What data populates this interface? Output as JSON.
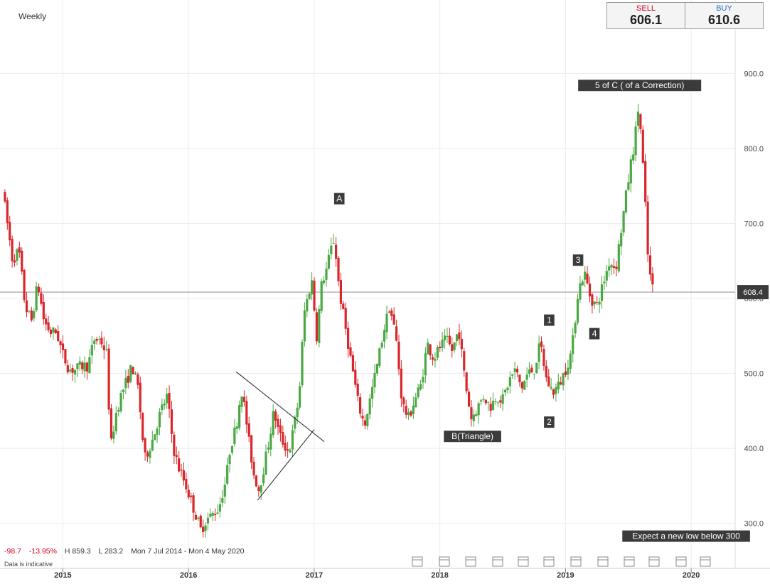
{
  "header": {
    "timeframe": "Weekly",
    "sell_label": "SELL",
    "sell_price": "606.1",
    "buy_label": "BUY",
    "buy_price": "610.6"
  },
  "footer": {
    "change": "-98.7",
    "change_pct": "-13.95%",
    "high": "H 859.3",
    "low": "L 283.2",
    "range": "Mon 7 Jul 2014 - Mon 4 May 2020",
    "note": "Data is indicative"
  },
  "colors": {
    "up": "#4aa843",
    "down": "#d9262b",
    "grid": "#ececec",
    "label_bg": "#3b3b3b",
    "current_line": "#8a8a8a"
  },
  "chart_data": {
    "type": "candlestick",
    "timeframe": "Weekly",
    "y_ticks": [
      300.0,
      400.0,
      500.0,
      600.0,
      700.0,
      800.0,
      900.0
    ],
    "y_tick_labels": [
      "300.0",
      "400.0",
      "500.0",
      "600.0",
      "700.0",
      "800.0",
      "900.0"
    ],
    "ylim": [
      240,
      960
    ],
    "x_tick_labels": [
      "2015",
      "2016",
      "2017",
      "2018",
      "2019",
      "2020"
    ],
    "x_ticks": [
      2015.0,
      2016.0,
      2017.0,
      2018.0,
      2019.0,
      2020.0
    ],
    "xlim": [
      2014.5,
      2020.35
    ],
    "current_price": 608.4,
    "current_price_label": "608.4",
    "high": 859.3,
    "low": 283.2,
    "price_path": [
      [
        2014.52,
        745
      ],
      [
        2014.55,
        710
      ],
      [
        2014.6,
        650
      ],
      [
        2014.65,
        665
      ],
      [
        2014.7,
        590
      ],
      [
        2014.75,
        570
      ],
      [
        2014.8,
        620
      ],
      [
        2014.85,
        570
      ],
      [
        2014.9,
        555
      ],
      [
        2014.95,
        555
      ],
      [
        2015.0,
        525
      ],
      [
        2015.05,
        505
      ],
      [
        2015.1,
        505
      ],
      [
        2015.15,
        510
      ],
      [
        2015.2,
        510
      ],
      [
        2015.25,
        545
      ],
      [
        2015.3,
        545
      ],
      [
        2015.35,
        525
      ],
      [
        2015.38,
        400
      ],
      [
        2015.42,
        445
      ],
      [
        2015.47,
        475
      ],
      [
        2015.52,
        495
      ],
      [
        2015.55,
        510
      ],
      [
        2015.6,
        480
      ],
      [
        2015.65,
        385
      ],
      [
        2015.72,
        415
      ],
      [
        2015.78,
        450
      ],
      [
        2015.83,
        470
      ],
      [
        2015.88,
        400
      ],
      [
        2015.92,
        375
      ],
      [
        2015.97,
        355
      ],
      [
        2016.02,
        330
      ],
      [
        2016.06,
        310
      ],
      [
        2016.1,
        290
      ],
      [
        2016.14,
        305
      ],
      [
        2016.18,
        310
      ],
      [
        2016.24,
        320
      ],
      [
        2016.3,
        360
      ],
      [
        2016.33,
        400
      ],
      [
        2016.38,
        430
      ],
      [
        2016.42,
        480
      ],
      [
        2016.45,
        450
      ],
      [
        2016.48,
        410
      ],
      [
        2016.52,
        365
      ],
      [
        2016.56,
        345
      ],
      [
        2016.6,
        375
      ],
      [
        2016.64,
        410
      ],
      [
        2016.68,
        450
      ],
      [
        2016.72,
        420
      ],
      [
        2016.76,
        405
      ],
      [
        2016.8,
        395
      ],
      [
        2016.84,
        430
      ],
      [
        2016.88,
        470
      ],
      [
        2016.92,
        580
      ],
      [
        2016.96,
        610
      ],
      [
        2016.98,
        625
      ],
      [
        2017.02,
        550
      ],
      [
        2017.06,
        620
      ],
      [
        2017.1,
        640
      ],
      [
        2017.14,
        670
      ],
      [
        2017.16,
        680
      ],
      [
        2017.2,
        610
      ],
      [
        2017.25,
        560
      ],
      [
        2017.3,
        510
      ],
      [
        2017.35,
        460
      ],
      [
        2017.4,
        430
      ],
      [
        2017.45,
        470
      ],
      [
        2017.5,
        510
      ],
      [
        2017.55,
        555
      ],
      [
        2017.6,
        590
      ],
      [
        2017.65,
        550
      ],
      [
        2017.7,
        460
      ],
      [
        2017.75,
        440
      ],
      [
        2017.8,
        465
      ],
      [
        2017.85,
        485
      ],
      [
        2017.9,
        540
      ],
      [
        2017.95,
        520
      ],
      [
        2018.0,
        535
      ],
      [
        2018.05,
        545
      ],
      [
        2018.1,
        530
      ],
      [
        2018.15,
        560
      ],
      [
        2018.2,
        490
      ],
      [
        2018.25,
        440
      ],
      [
        2018.3,
        455
      ],
      [
        2018.35,
        470
      ],
      [
        2018.4,
        455
      ],
      [
        2018.45,
        470
      ],
      [
        2018.5,
        465
      ],
      [
        2018.55,
        490
      ],
      [
        2018.6,
        505
      ],
      [
        2018.65,
        480
      ],
      [
        2018.7,
        500
      ],
      [
        2018.75,
        505
      ],
      [
        2018.8,
        540
      ],
      [
        2018.85,
        490
      ],
      [
        2018.9,
        475
      ],
      [
        2018.95,
        485
      ],
      [
        2019.0,
        505
      ],
      [
        2019.05,
        530
      ],
      [
        2019.1,
        610
      ],
      [
        2019.15,
        635
      ],
      [
        2019.2,
        600
      ],
      [
        2019.25,
        590
      ],
      [
        2019.3,
        620
      ],
      [
        2019.35,
        650
      ],
      [
        2019.4,
        640
      ],
      [
        2019.45,
        700
      ],
      [
        2019.48,
        735
      ],
      [
        2019.52,
        780
      ],
      [
        2019.55,
        810
      ],
      [
        2019.58,
        855
      ],
      [
        2019.6,
        820
      ],
      [
        2019.63,
        740
      ],
      [
        2019.66,
        640
      ],
      [
        2019.7,
        608
      ]
    ],
    "annotations": [
      "A",
      "B(Triangle)",
      "1",
      "2",
      "3",
      "4",
      "5 of C ( of a Correction)",
      "Expect a new low below 300"
    ],
    "annotation_points": [
      [
        2017.2,
        733
      ],
      [
        2018.26,
        416
      ],
      [
        2018.87,
        571
      ],
      [
        2018.87,
        435
      ],
      [
        2019.1,
        651
      ],
      [
        2019.23,
        553
      ],
      [
        2019.59,
        884
      ],
      [
        2019.96,
        283
      ]
    ],
    "triangle_lines": [
      [
        [
          2016.38,
          502
        ],
        [
          2017.08,
          409
        ]
      ],
      [
        [
          2016.55,
          331
        ],
        [
          2017.0,
          425
        ]
      ]
    ]
  }
}
